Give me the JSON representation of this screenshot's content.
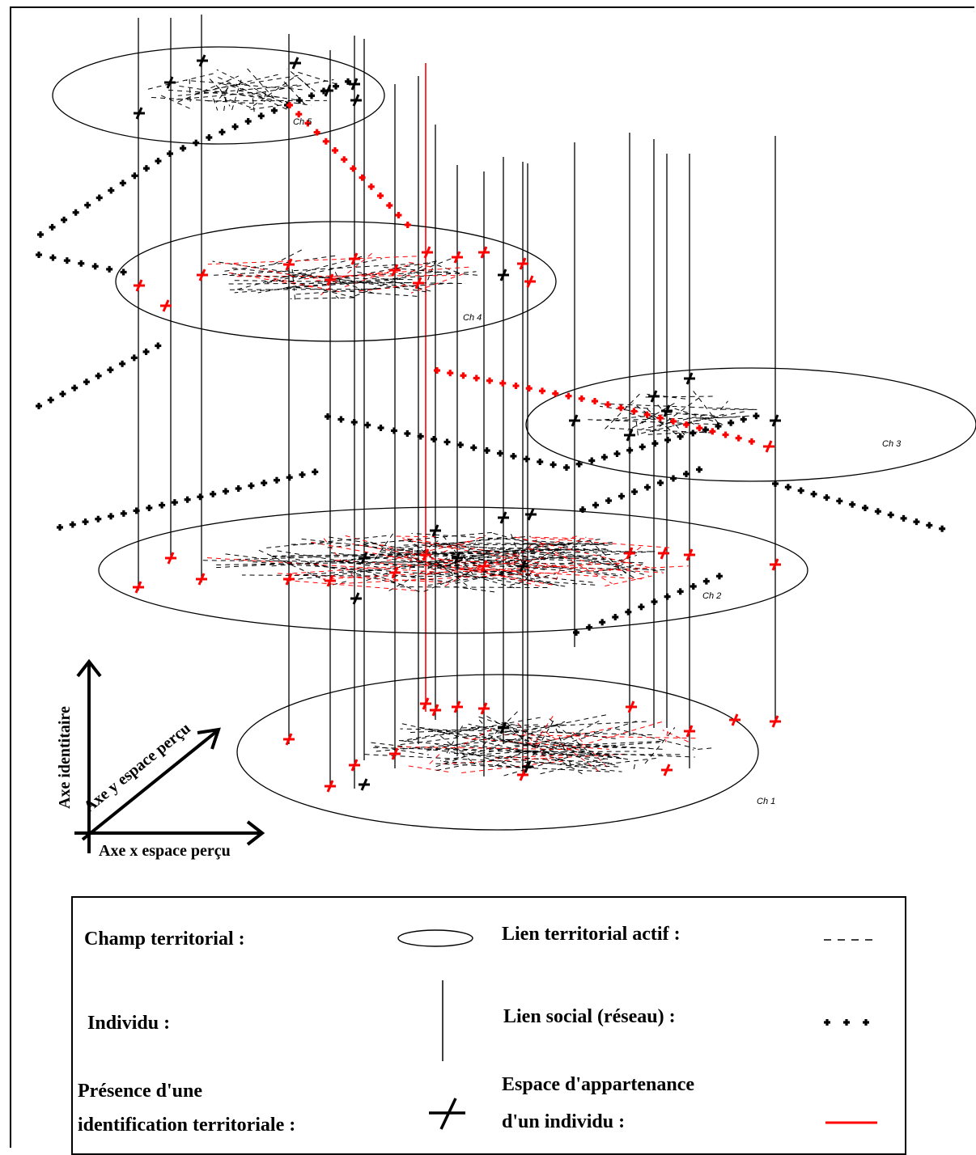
{
  "fields": [
    {
      "label": "Ch 5"
    },
    {
      "label": "Ch 4"
    },
    {
      "label": "Ch 3"
    },
    {
      "label": "Ch 2"
    },
    {
      "label": "Ch 1"
    }
  ],
  "axes": {
    "vertical": "Axe identitaire",
    "diagonal": "Axe y espace perçu",
    "horizontal": "Axe x espace perçu"
  },
  "legend": {
    "champ": "Champ territorial :",
    "lien_actif": "Lien territorial actif :",
    "individu": "Individu :",
    "lien_social": "Lien social (réseau) :",
    "presence_1": "Présence d'une",
    "presence_2": "identification territoriale :",
    "espace_1": "Espace d'appartenance",
    "espace_2": "d'un individu :"
  },
  "colors": {
    "black": "#000000",
    "red": "#ff0000"
  }
}
